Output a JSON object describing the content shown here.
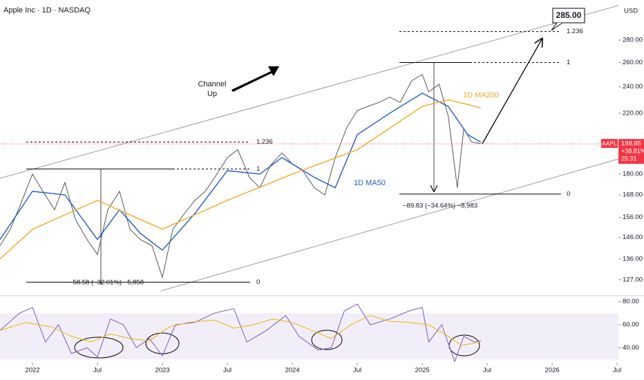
{
  "chart_data": [
    {
      "type": "line",
      "title": "Apple Inc · 1D · NASDAQ",
      "currency": "USD",
      "log_scale": true,
      "xlim": [
        2021.75,
        2026.51
      ],
      "ylim": [
        121.3,
        319.6
      ],
      "xticks": [
        {
          "value": 2022,
          "label": "2022"
        },
        {
          "value": 2022.5,
          "label": "Jul"
        },
        {
          "value": 2023,
          "label": "2023"
        },
        {
          "value": 2023.5,
          "label": "Jul"
        },
        {
          "value": 2024,
          "label": "2024"
        },
        {
          "value": 2024.5,
          "label": "Jul"
        },
        {
          "value": 2025,
          "label": "2025"
        },
        {
          "value": 2025.5,
          "label": "Jul"
        },
        {
          "value": 2026,
          "label": "2026"
        },
        {
          "value": 2026.5,
          "label": "Jul"
        }
      ],
      "yticks": [
        {
          "value": 280,
          "label": "280.00"
        },
        {
          "value": 260,
          "label": "260.00"
        },
        {
          "value": 240,
          "label": "240.00"
        },
        {
          "value": 220,
          "label": "220.00"
        },
        {
          "value": 180,
          "label": "180.00"
        },
        {
          "value": 168,
          "label": "168.00"
        },
        {
          "value": 156,
          "label": "156.00"
        },
        {
          "value": 146,
          "label": "146.00"
        },
        {
          "value": 136,
          "label": "136.00"
        },
        {
          "value": 127,
          "label": "127.00"
        }
      ],
      "series": [
        {
          "color": "#555555",
          "x": [
            2021.75,
            2021.83,
            2021.92,
            2022.0,
            2022.08,
            2022.17,
            2022.25,
            2022.33,
            2022.42,
            2022.5,
            2022.58,
            2022.67,
            2022.75,
            2022.83,
            2022.92,
            2023.0,
            2023.08,
            2023.17,
            2023.25,
            2023.33,
            2023.42,
            2023.5,
            2023.58,
            2023.67,
            2023.75,
            2023.83,
            2023.92,
            2024.0,
            2024.08,
            2024.17,
            2024.25,
            2024.33,
            2024.42,
            2024.5,
            2024.58,
            2024.67,
            2024.75,
            2024.83,
            2024.92,
            2025.0,
            2025.05,
            2025.13,
            2025.2,
            2025.27,
            2025.32,
            2025.38,
            2025.45
          ],
          "values": [
            142,
            150,
            165,
            180,
            170,
            160,
            175,
            155,
            145,
            138,
            160,
            170,
            150,
            145,
            142,
            128,
            150,
            158,
            165,
            170,
            180,
            190,
            195,
            178,
            172,
            185,
            193,
            186,
            182,
            172,
            168,
            190,
            210,
            222,
            225,
            228,
            232,
            228,
            245,
            250,
            236,
            242,
            218,
            172,
            209,
            200,
            199
          ]
        },
        {
          "name": "1D MA50",
          "color": "#1e5bc6",
          "x": [
            2021.75,
            2022.0,
            2022.25,
            2022.5,
            2022.67,
            2022.83,
            2023.0,
            2023.25,
            2023.5,
            2023.75,
            2023.92,
            2024.17,
            2024.33,
            2024.5,
            2024.75,
            2025.0,
            2025.2,
            2025.35,
            2025.45
          ],
          "values": [
            145,
            170,
            168,
            145,
            160,
            148,
            140,
            158,
            182,
            180,
            190,
            178,
            172,
            205,
            220,
            235,
            225,
            205,
            200
          ]
        },
        {
          "name": "1D MA200",
          "color": "#f5a623",
          "x": [
            2021.75,
            2022.0,
            2022.5,
            2023.0,
            2023.5,
            2024.0,
            2024.5,
            2025.0,
            2025.2,
            2025.45
          ],
          "values": [
            136,
            150,
            165,
            150,
            165,
            180,
            195,
            225,
            230,
            224
          ]
        }
      ],
      "channel_label": [
        "Channel",
        "Up"
      ],
      "target_label": "285.00",
      "fib_left": {
        "levels": [
          {
            "level": 1.236,
            "price": 200
          },
          {
            "level": 1,
            "price": 183
          },
          {
            "level": 0,
            "price": 126
          }
        ],
        "measure": "−58.58 (−32.01%) −5,858"
      },
      "fib_right": {
        "levels": [
          {
            "level": 1.236,
            "price": 288
          },
          {
            "level": 1,
            "price": 260
          },
          {
            "level": 0,
            "price": 168.5
          }
        ],
        "measure": "−89.83 (−34.64%) −8,983"
      },
      "badge": {
        "symbol": "AAPL",
        "price": 198.85,
        "change": "+38.81%",
        "countdown": "25:31"
      }
    },
    {
      "type": "line",
      "ylim": [
        27,
        84
      ],
      "yticks": [
        {
          "value": 80,
          "label": "80.00"
        },
        {
          "value": 60,
          "label": "60.00"
        },
        {
          "value": 40,
          "label": "40.00"
        }
      ],
      "band": [
        30,
        70
      ],
      "series": [
        {
          "color": "#7e57c2",
          "x": [
            2021.75,
            2021.9,
            2022.0,
            2022.1,
            2022.2,
            2022.3,
            2022.42,
            2022.5,
            2022.6,
            2022.7,
            2022.8,
            2022.9,
            2023.0,
            2023.1,
            2023.25,
            2023.4,
            2023.55,
            2023.65,
            2023.8,
            2023.95,
            2024.05,
            2024.2,
            2024.3,
            2024.4,
            2024.5,
            2024.6,
            2024.75,
            2024.9,
            2025.0,
            2025.05,
            2025.15,
            2025.25,
            2025.32,
            2025.4,
            2025.45
          ],
          "values": [
            55,
            70,
            75,
            45,
            60,
            35,
            40,
            32,
            65,
            60,
            40,
            48,
            33,
            60,
            62,
            70,
            74,
            45,
            55,
            68,
            50,
            38,
            40,
            72,
            78,
            60,
            65,
            72,
            75,
            45,
            60,
            28,
            50,
            45,
            46
          ]
        },
        {
          "color": "#f0b400",
          "x": [
            2021.75,
            2021.95,
            2022.15,
            2022.3,
            2022.45,
            2022.6,
            2022.75,
            2022.9,
            2023.05,
            2023.2,
            2023.4,
            2023.55,
            2023.7,
            2023.85,
            2024.0,
            2024.15,
            2024.3,
            2024.45,
            2024.6,
            2024.75,
            2024.9,
            2025.05,
            2025.2,
            2025.3,
            2025.45
          ],
          "values": [
            55,
            62,
            58,
            50,
            45,
            52,
            48,
            46,
            58,
            62,
            64,
            57,
            60,
            65,
            62,
            55,
            48,
            60,
            68,
            63,
            62,
            60,
            50,
            42,
            45
          ]
        }
      ]
    }
  ]
}
